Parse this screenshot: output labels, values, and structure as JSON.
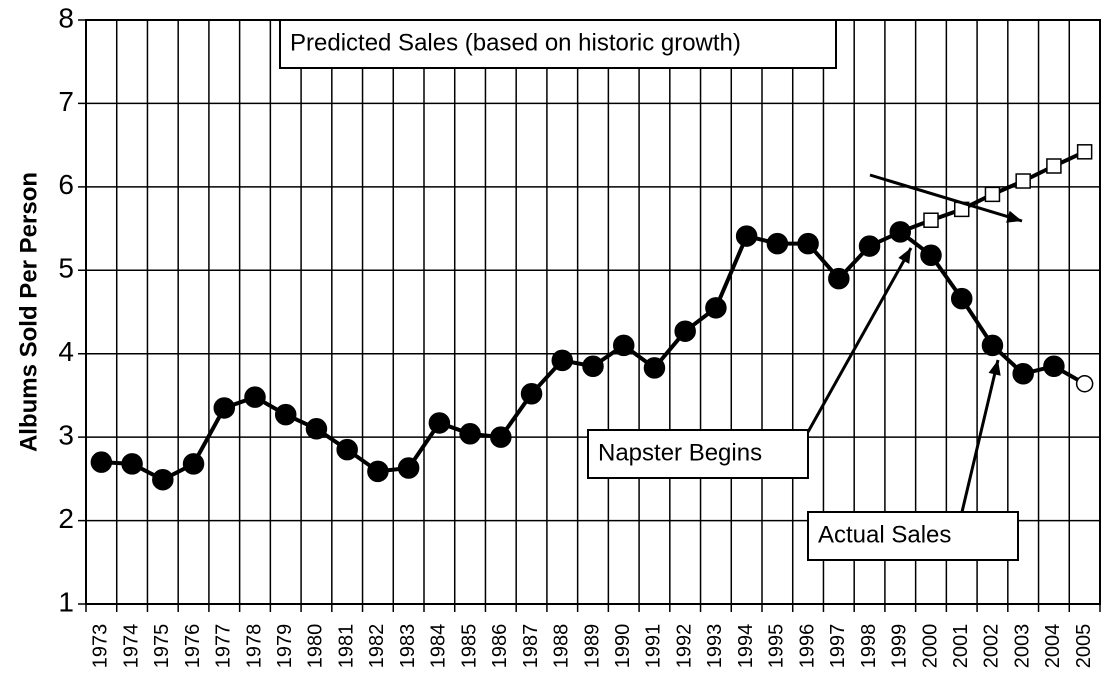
{
  "chart_data": {
    "type": "line",
    "y_label": "Albums Sold Per Person",
    "categories": [
      "1973",
      "1974",
      "1975",
      "1976",
      "1977",
      "1978",
      "1979",
      "1980",
      "1981",
      "1982",
      "1983",
      "1984",
      "1985",
      "1986",
      "1987",
      "1988",
      "1989",
      "1990",
      "1991",
      "1992",
      "1993",
      "1994",
      "1995",
      "1996",
      "1997",
      "1998",
      "1999",
      "2000",
      "2001",
      "2002",
      "2003",
      "2004",
      "2005"
    ],
    "series": [
      {
        "name": "Actual Sales",
        "color": "#000000",
        "marker": "circle",
        "values": [
          2.7,
          2.68,
          2.49,
          2.68,
          3.35,
          3.48,
          3.27,
          3.1,
          2.85,
          2.59,
          2.63,
          3.17,
          3.04,
          3.0,
          3.52,
          3.92,
          3.85,
          4.1,
          3.83,
          4.27,
          4.55,
          5.41,
          5.32,
          5.32,
          4.9,
          5.29,
          5.46,
          5.18,
          4.66,
          4.1,
          3.76,
          3.85,
          3.64
        ]
      },
      {
        "name": "Predicted Sales (based on historic growth)",
        "color": "#000000",
        "marker": "square",
        "values": [
          null,
          null,
          null,
          null,
          null,
          null,
          null,
          null,
          null,
          null,
          null,
          null,
          null,
          null,
          null,
          null,
          null,
          null,
          null,
          null,
          null,
          null,
          null,
          null,
          null,
          null,
          5.46,
          5.6,
          5.73,
          5.91,
          6.07,
          6.25,
          6.42
        ]
      }
    ],
    "annotations": [
      "Napster Begins"
    ],
    "ylim": [
      1,
      8
    ],
    "yticks": [
      1,
      2,
      3,
      4,
      5,
      6,
      7,
      8
    ],
    "grid": true
  }
}
